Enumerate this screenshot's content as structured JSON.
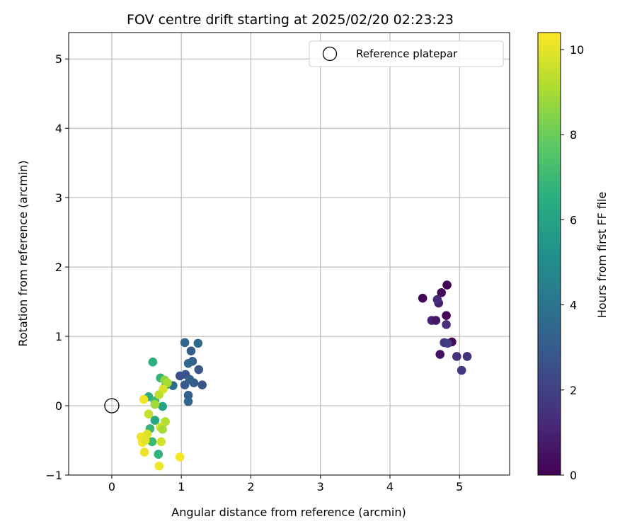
{
  "chart_data": {
    "type": "scatter",
    "title": "FOV centre drift starting at 2025/02/20 02:23:23",
    "xlabel": "Angular distance from reference (arcmin)",
    "ylabel": "Rotation from reference (arcmin)",
    "xlim": [
      -0.62,
      5.72
    ],
    "ylim": [
      -1.0,
      5.38
    ],
    "xticks": [
      0,
      1,
      2,
      3,
      4,
      5
    ],
    "yticks": [
      -1,
      0,
      1,
      2,
      3,
      4,
      5
    ],
    "grid": true,
    "legend": {
      "placement": "top-right",
      "entries": [
        "Reference platepar"
      ]
    },
    "colorbar": {
      "label": "Hours from first FF file",
      "min": 0,
      "max": 10.4,
      "ticks": [
        0,
        2,
        4,
        6,
        8,
        10
      ],
      "colormap": "viridis"
    },
    "reference": {
      "x": 0,
      "y": 0,
      "label": "Reference platepar"
    },
    "points": [
      {
        "x": 4.82,
        "y": 1.74,
        "t": 0.05
      },
      {
        "x": 4.47,
        "y": 1.55,
        "t": 0.15
      },
      {
        "x": 4.74,
        "y": 1.63,
        "t": 0.3
      },
      {
        "x": 4.81,
        "y": 1.3,
        "t": 0.1
      },
      {
        "x": 4.7,
        "y": 1.48,
        "t": 0.9
      },
      {
        "x": 4.68,
        "y": 1.53,
        "t": 1.2
      },
      {
        "x": 4.6,
        "y": 1.23,
        "t": 1.0
      },
      {
        "x": 4.66,
        "y": 1.23,
        "t": 0.6
      },
      {
        "x": 4.81,
        "y": 1.17,
        "t": 1.3
      },
      {
        "x": 4.89,
        "y": 0.92,
        "t": 0.2
      },
      {
        "x": 4.78,
        "y": 0.91,
        "t": 1.6
      },
      {
        "x": 4.83,
        "y": 0.9,
        "t": 1.8
      },
      {
        "x": 4.72,
        "y": 0.74,
        "t": 0.4
      },
      {
        "x": 4.96,
        "y": 0.71,
        "t": 1.4
      },
      {
        "x": 5.11,
        "y": 0.71,
        "t": 1.5
      },
      {
        "x": 5.03,
        "y": 0.51,
        "t": 1.7
      },
      {
        "x": 1.05,
        "y": 0.91,
        "t": 3.4
      },
      {
        "x": 1.24,
        "y": 0.9,
        "t": 3.6
      },
      {
        "x": 1.14,
        "y": 0.79,
        "t": 3.0
      },
      {
        "x": 1.16,
        "y": 0.64,
        "t": 3.2
      },
      {
        "x": 1.1,
        "y": 0.61,
        "t": 3.5
      },
      {
        "x": 1.25,
        "y": 0.52,
        "t": 2.8
      },
      {
        "x": 0.98,
        "y": 0.43,
        "t": 2.5
      },
      {
        "x": 1.06,
        "y": 0.45,
        "t": 2.6
      },
      {
        "x": 1.12,
        "y": 0.38,
        "t": 3.3
      },
      {
        "x": 1.05,
        "y": 0.3,
        "t": 2.9
      },
      {
        "x": 1.18,
        "y": 0.33,
        "t": 3.1
      },
      {
        "x": 1.3,
        "y": 0.3,
        "t": 2.7
      },
      {
        "x": 0.88,
        "y": 0.29,
        "t": 3.8
      },
      {
        "x": 1.1,
        "y": 0.15,
        "t": 3.2
      },
      {
        "x": 1.1,
        "y": 0.06,
        "t": 3.4
      },
      {
        "x": 0.59,
        "y": 0.63,
        "t": 6.6
      },
      {
        "x": 0.7,
        "y": 0.4,
        "t": 6.8
      },
      {
        "x": 0.78,
        "y": 0.3,
        "t": 5.6
      },
      {
        "x": 0.53,
        "y": 0.13,
        "t": 6.5
      },
      {
        "x": 0.62,
        "y": 0.07,
        "t": 7.0
      },
      {
        "x": 0.73,
        "y": -0.01,
        "t": 6.0
      },
      {
        "x": 0.62,
        "y": -0.21,
        "t": 6.3
      },
      {
        "x": 0.55,
        "y": -0.33,
        "t": 6.9
      },
      {
        "x": 0.58,
        "y": -0.52,
        "t": 7.0
      },
      {
        "x": 0.67,
        "y": -0.7,
        "t": 6.7
      },
      {
        "x": 0.76,
        "y": 0.37,
        "t": 8.6
      },
      {
        "x": 0.8,
        "y": 0.33,
        "t": 9.0
      },
      {
        "x": 0.74,
        "y": 0.24,
        "t": 9.8
      },
      {
        "x": 0.68,
        "y": 0.16,
        "t": 9.4
      },
      {
        "x": 0.62,
        "y": 0.02,
        "t": 8.9
      },
      {
        "x": 0.46,
        "y": 0.09,
        "t": 10.2
      },
      {
        "x": 0.53,
        "y": -0.12,
        "t": 9.5
      },
      {
        "x": 0.77,
        "y": -0.23,
        "t": 9.2
      },
      {
        "x": 0.7,
        "y": -0.31,
        "t": 9.6
      },
      {
        "x": 0.73,
        "y": -0.34,
        "t": 9.0
      },
      {
        "x": 0.51,
        "y": -0.41,
        "t": 9.9
      },
      {
        "x": 0.42,
        "y": -0.45,
        "t": 10.2
      },
      {
        "x": 0.44,
        "y": -0.53,
        "t": 10.3
      },
      {
        "x": 0.48,
        "y": -0.5,
        "t": 10.0
      },
      {
        "x": 0.71,
        "y": -0.52,
        "t": 9.7
      },
      {
        "x": 0.47,
        "y": -0.67,
        "t": 10.1
      },
      {
        "x": 0.98,
        "y": -0.74,
        "t": 10.3
      },
      {
        "x": 0.68,
        "y": -0.87,
        "t": 10.2
      }
    ]
  }
}
